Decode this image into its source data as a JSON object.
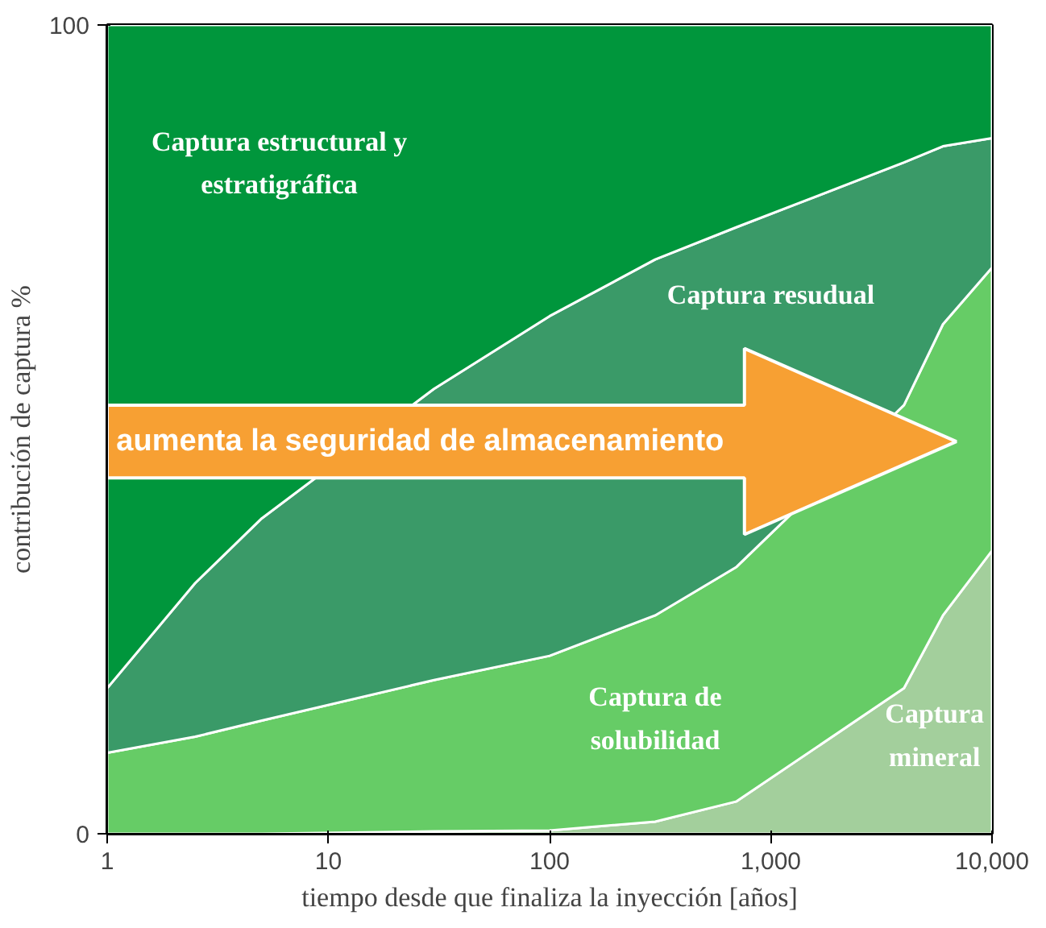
{
  "chart_data": {
    "type": "area",
    "stacked": true,
    "log": "x",
    "xlabel": "tiempo desde que finaliza la inyección [años]",
    "ylabel": "contribución de captura %",
    "x": [
      1,
      2.5,
      5,
      30,
      100,
      300,
      700,
      4000,
      6000,
      10000
    ],
    "series": [
      {
        "name": "Captura mineral",
        "color": "#a3cf9c",
        "values": [
          0,
          0,
          0,
          0.3,
          0.4,
          1.5,
          4,
          18,
          27,
          35
        ]
      },
      {
        "name": "Captura de solubilidad",
        "color": "#66cc66",
        "values": [
          10,
          12,
          14,
          18.7,
          21.6,
          25.5,
          29,
          35,
          36,
          35
        ]
      },
      {
        "name": "Captura resudual",
        "color": "#3a9a68",
        "values": [
          8,
          19,
          25,
          36,
          42,
          44,
          42,
          30,
          22,
          16
        ]
      },
      {
        "name": "Captura estructural y estratigráfica",
        "color": "#00963c",
        "values": [
          82,
          69,
          61,
          45,
          36,
          29,
          25,
          17,
          15,
          14
        ]
      }
    ],
    "xlim": [
      1,
      10000
    ],
    "ylim": [
      0,
      100
    ],
    "xticks": [
      1,
      10,
      100,
      {
        "value": 1000,
        "label": "1,000"
      },
      {
        "value": 10000,
        "label": "10,000"
      }
    ],
    "yticks": [
      0,
      100
    ],
    "annotations": [
      "aumenta la seguridad de almacenamiento"
    ]
  }
}
